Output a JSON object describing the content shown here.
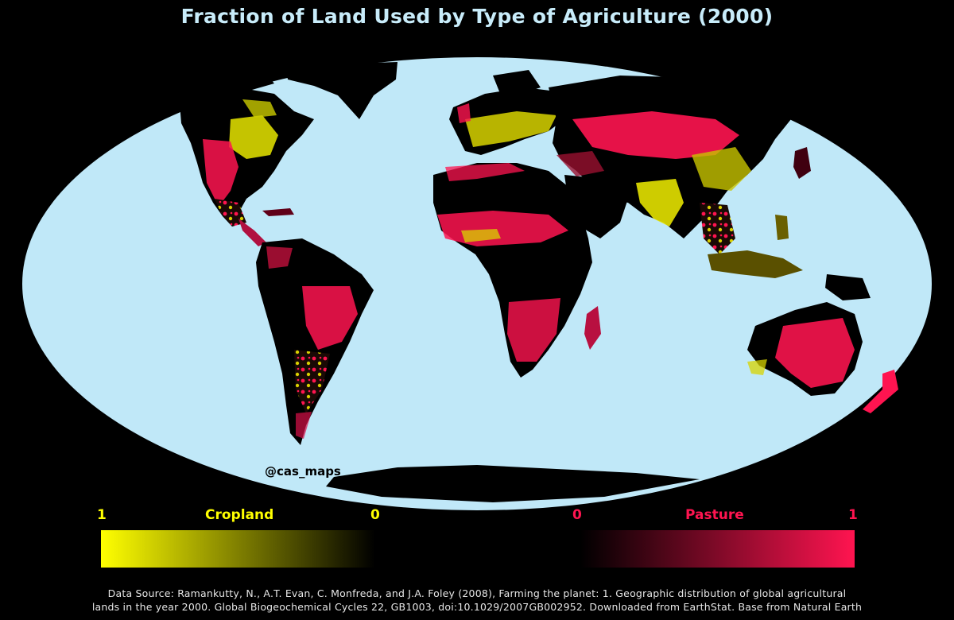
{
  "title": "Fraction of Land Used by Type of Agriculture (2000)",
  "credit": "@cas_maps",
  "legend": {
    "cropland": {
      "label": "Cropland",
      "left_value": "1",
      "right_value": "0"
    },
    "pasture": {
      "label": "Pasture",
      "left_value": "0",
      "right_value": "1"
    }
  },
  "source": {
    "line1": "Data Source: Ramankutty, N., A.T. Evan, C. Monfreda, and J.A. Foley (2008), Farming the planet: 1. Geographic distribution of global agricultural",
    "line2": "lands in the year 2000. Global Biogeochemical Cycles 22, GB1003, doi:10.1029/2007GB002952. Downloaded from EarthStat. Base from Natural Earth"
  },
  "colors": {
    "background": "#000000",
    "ocean": "#c0e8f8",
    "title": "#c8ecfa",
    "cropland": "#ffff00",
    "pasture": "#ff1450",
    "source_text": "#e6e6e6"
  },
  "projection": "Mollweide"
}
